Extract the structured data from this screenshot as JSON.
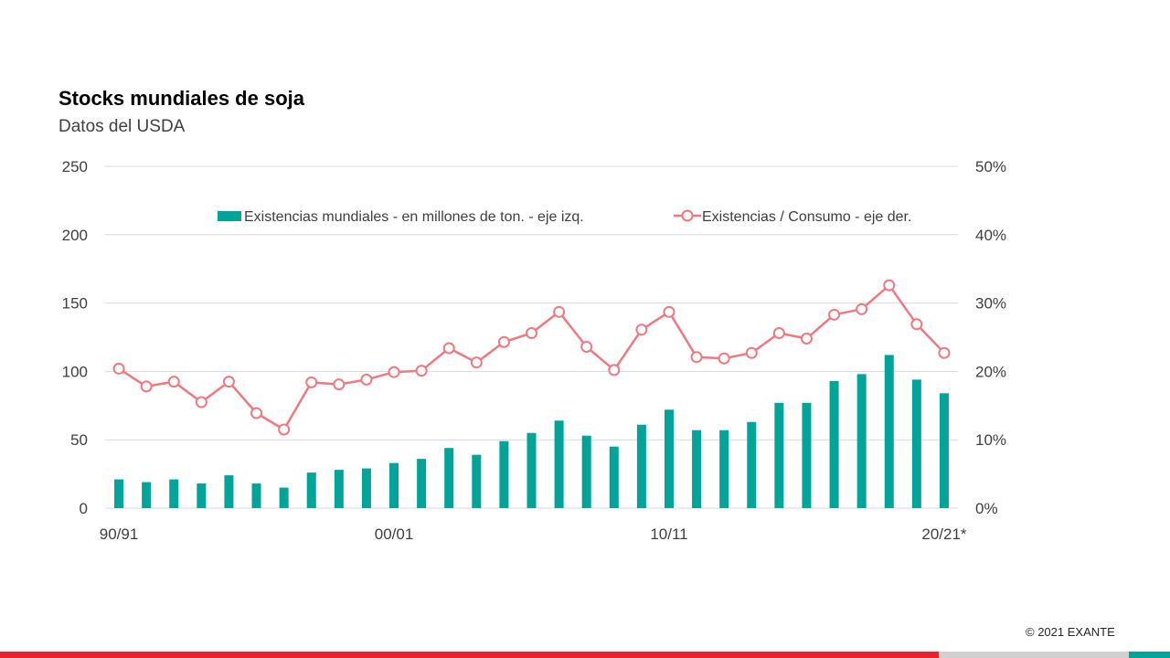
{
  "header": {
    "title": "Stocks mundiales de soja",
    "subtitle": "Datos del USDA"
  },
  "footer": {
    "copyright": "© 2021 EXANTE"
  },
  "colors": {
    "bars": "#00A499",
    "line": "#F07880",
    "grid": "#D9D9D9",
    "text": "#404040",
    "accent_red": "#E8222E",
    "accent_grey": "#D0D0D0",
    "accent_teal": "#00A499"
  },
  "chart_data": {
    "type": "bar+line",
    "categories": [
      "90/91",
      "91/92",
      "92/93",
      "93/94",
      "94/95",
      "95/96",
      "96/97",
      "97/98",
      "98/99",
      "99/00",
      "00/01",
      "01/02",
      "02/03",
      "03/04",
      "04/05",
      "05/06",
      "06/07",
      "07/08",
      "08/09",
      "09/10",
      "10/11",
      "11/12",
      "12/13",
      "13/14",
      "14/15",
      "15/16",
      "16/17",
      "17/18",
      "18/19",
      "19/20",
      "20/21*"
    ],
    "x_tick_labels": [
      "90/91",
      "00/01",
      "10/11",
      "20/21*"
    ],
    "series": [
      {
        "name": "Existencias mundiales - en millones de ton. - eje izq.",
        "type": "bar",
        "axis": "left",
        "values": [
          21,
          19,
          21,
          18,
          24,
          18,
          15,
          26,
          28,
          29,
          33,
          36,
          44,
          39,
          49,
          55,
          64,
          53,
          45,
          61,
          72,
          57,
          57,
          63,
          77,
          77,
          93,
          98,
          112,
          94,
          84
        ]
      },
      {
        "name": "Existencias / Consumo - eje der.",
        "type": "line",
        "axis": "right",
        "values": [
          20.4,
          17.8,
          18.5,
          15.5,
          18.5,
          13.9,
          11.5,
          18.4,
          18.1,
          18.8,
          19.9,
          20.1,
          23.4,
          21.3,
          24.3,
          25.6,
          28.7,
          23.6,
          20.2,
          26.1,
          28.7,
          22.1,
          21.9,
          22.7,
          25.6,
          24.8,
          28.3,
          29.1,
          32.6,
          26.9,
          22.7
        ]
      }
    ],
    "y_left": {
      "min": 0,
      "max": 250,
      "ticks": [
        "0",
        "50",
        "100",
        "150",
        "200",
        "250"
      ]
    },
    "y_right": {
      "min": 0,
      "max": 50,
      "ticks": [
        "0%",
        "10%",
        "20%",
        "30%",
        "40%",
        "50%"
      ]
    },
    "grid": true,
    "legend_position": "top-right"
  }
}
